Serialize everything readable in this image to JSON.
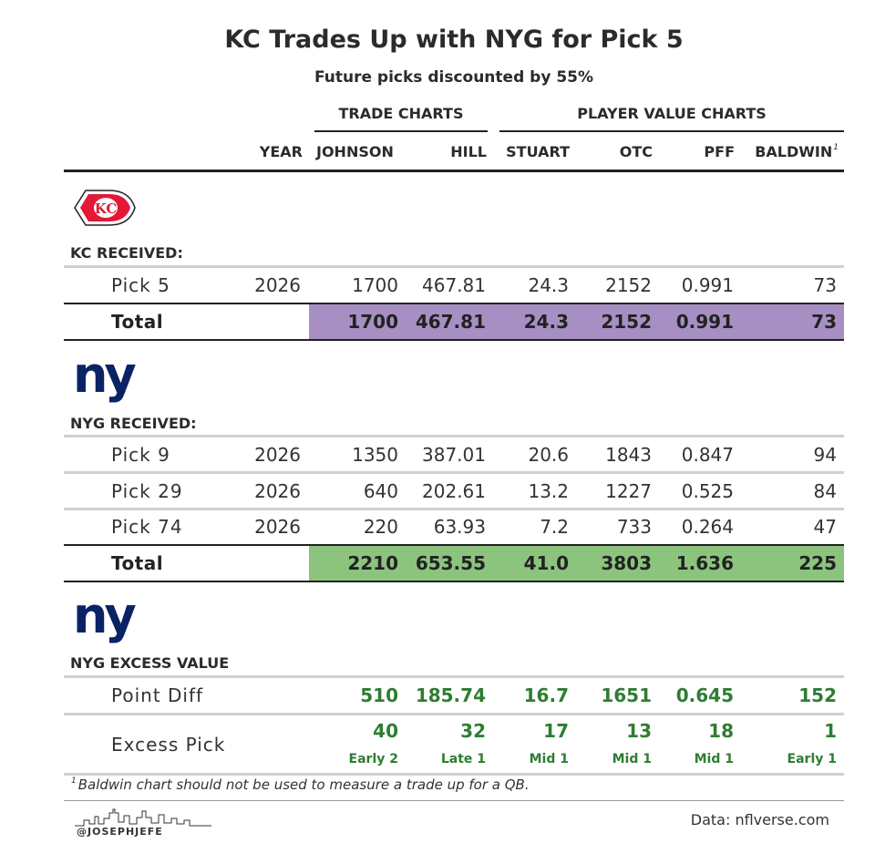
{
  "title": "KC Trades Up with NYG for Pick 5",
  "subtitle": "Future picks discounted by 55%",
  "groups": {
    "trade": "TRADE CHARTS",
    "player": "PLAYER VALUE CHARTS"
  },
  "headers": {
    "year": "YEAR",
    "johnson": "JOHNSON",
    "hill": "HILL",
    "stuart": "STUART",
    "otc": "OTC",
    "pff": "PFF",
    "baldwin": "BALDWIN",
    "baldwin_note": "1"
  },
  "kc": {
    "section": "KC RECEIVED:",
    "rows": [
      {
        "label": "Pick 5",
        "year": "2026",
        "johnson": "1700",
        "hill": "467.81",
        "stuart": "24.3",
        "otc": "2152",
        "pff": "0.991",
        "baldwin": "73"
      }
    ],
    "total": {
      "label": "Total",
      "johnson": "1700",
      "hill": "467.81",
      "stuart": "24.3",
      "otc": "2152",
      "pff": "0.991",
      "baldwin": "73"
    },
    "total_color": "#a78fc4"
  },
  "nyg": {
    "section": "NYG RECEIVED:",
    "rows": [
      {
        "label": "Pick 9",
        "year": "2026",
        "johnson": "1350",
        "hill": "387.01",
        "stuart": "20.6",
        "otc": "1843",
        "pff": "0.847",
        "baldwin": "94"
      },
      {
        "label": "Pick 29",
        "year": "2026",
        "johnson": "640",
        "hill": "202.61",
        "stuart": "13.2",
        "otc": "1227",
        "pff": "0.525",
        "baldwin": "84"
      },
      {
        "label": "Pick 74",
        "year": "2026",
        "johnson": "220",
        "hill": "63.93",
        "stuart": "7.2",
        "otc": "733",
        "pff": "0.264",
        "baldwin": "47"
      }
    ],
    "total": {
      "label": "Total",
      "johnson": "2210",
      "hill": "653.55",
      "stuart": "41.0",
      "otc": "3803",
      "pff": "1.636",
      "baldwin": "225"
    },
    "total_color": "#8cc47e"
  },
  "excess": {
    "section": "NYG EXCESS VALUE",
    "point_diff": {
      "label": "Point Diff",
      "johnson": "510",
      "hill": "185.74",
      "stuart": "16.7",
      "otc": "1651",
      "pff": "0.645",
      "baldwin": "152"
    },
    "excess_pick": {
      "label": "Excess Pick",
      "johnson": "40",
      "hill": "32",
      "stuart": "17",
      "otc": "13",
      "pff": "18",
      "baldwin": "1"
    },
    "excess_round": {
      "johnson": "Early 2",
      "hill": "Late 1",
      "stuart": "Mid 1",
      "otc": "Mid 1",
      "pff": "Mid 1",
      "baldwin": "Early 1"
    },
    "value_color": "#2e7d32"
  },
  "kc_logo_text": "KC",
  "nyg_logo_text": "ny",
  "logo_colors": {
    "kc_red": "#e31837",
    "nyg_blue": "#0b2265"
  },
  "footnote": {
    "mark": "1",
    "text": "Baldwin chart should not be used to measure a trade up for a QB."
  },
  "credit": "Data: nflverse.com",
  "handle": "@JOSEPHJEFE"
}
